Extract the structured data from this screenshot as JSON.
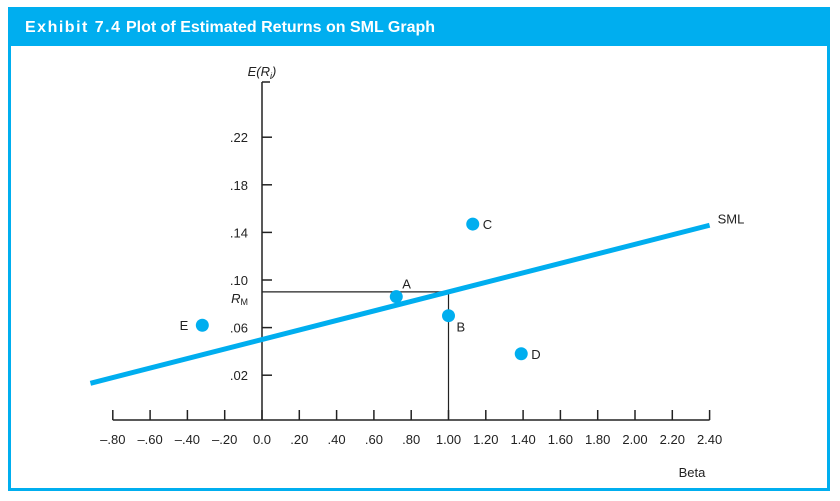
{
  "header": {
    "exhibit": "Exhibit 7.4",
    "title": "Plot of Estimated Returns on SML Graph"
  },
  "colors": {
    "accent": "#00aeef",
    "axis": "#222222"
  },
  "chart_data": {
    "type": "scatter",
    "title": "Plot of Estimated Returns on SML Graph",
    "xlabel": "Beta",
    "ylabel": "E(Ri)",
    "xlim": [
      -0.8,
      2.4
    ],
    "x_ticks": [
      -0.8,
      -0.6,
      -0.4,
      -0.2,
      0,
      0.2,
      0.4,
      0.6,
      0.8,
      1.0,
      1.2,
      1.4,
      1.6,
      1.8,
      2.0,
      2.2,
      2.4
    ],
    "x_tick_labels": [
      "–.80",
      "–.60",
      "–.40",
      "–.20",
      "0.0",
      ".20",
      ".40",
      ".60",
      ".80",
      "1.00",
      "1.20",
      "1.40",
      "1.60",
      "1.80",
      "2.00",
      "2.20",
      "2.40"
    ],
    "y_ticks": [
      0.02,
      0.06,
      0.1,
      0.14,
      0.18,
      0.22
    ],
    "y_tick_labels": [
      ".02",
      ".06",
      ".10",
      ".14",
      ".18",
      ".22"
    ],
    "market": {
      "label": "R",
      "subscript": "M",
      "beta": 1.0,
      "return": 0.09
    },
    "sml": {
      "name": "SML",
      "intercept": 0.05,
      "slope": 0.04,
      "beta_range": [
        -0.92,
        2.4
      ]
    },
    "points": [
      {
        "label": "A",
        "beta": 0.72,
        "return": 0.086
      },
      {
        "label": "B",
        "beta": 1.0,
        "return": 0.07
      },
      {
        "label": "C",
        "beta": 1.13,
        "return": 0.147
      },
      {
        "label": "D",
        "beta": 1.39,
        "return": 0.038
      },
      {
        "label": "E",
        "beta": -0.32,
        "return": 0.062
      }
    ],
    "grid": false
  }
}
